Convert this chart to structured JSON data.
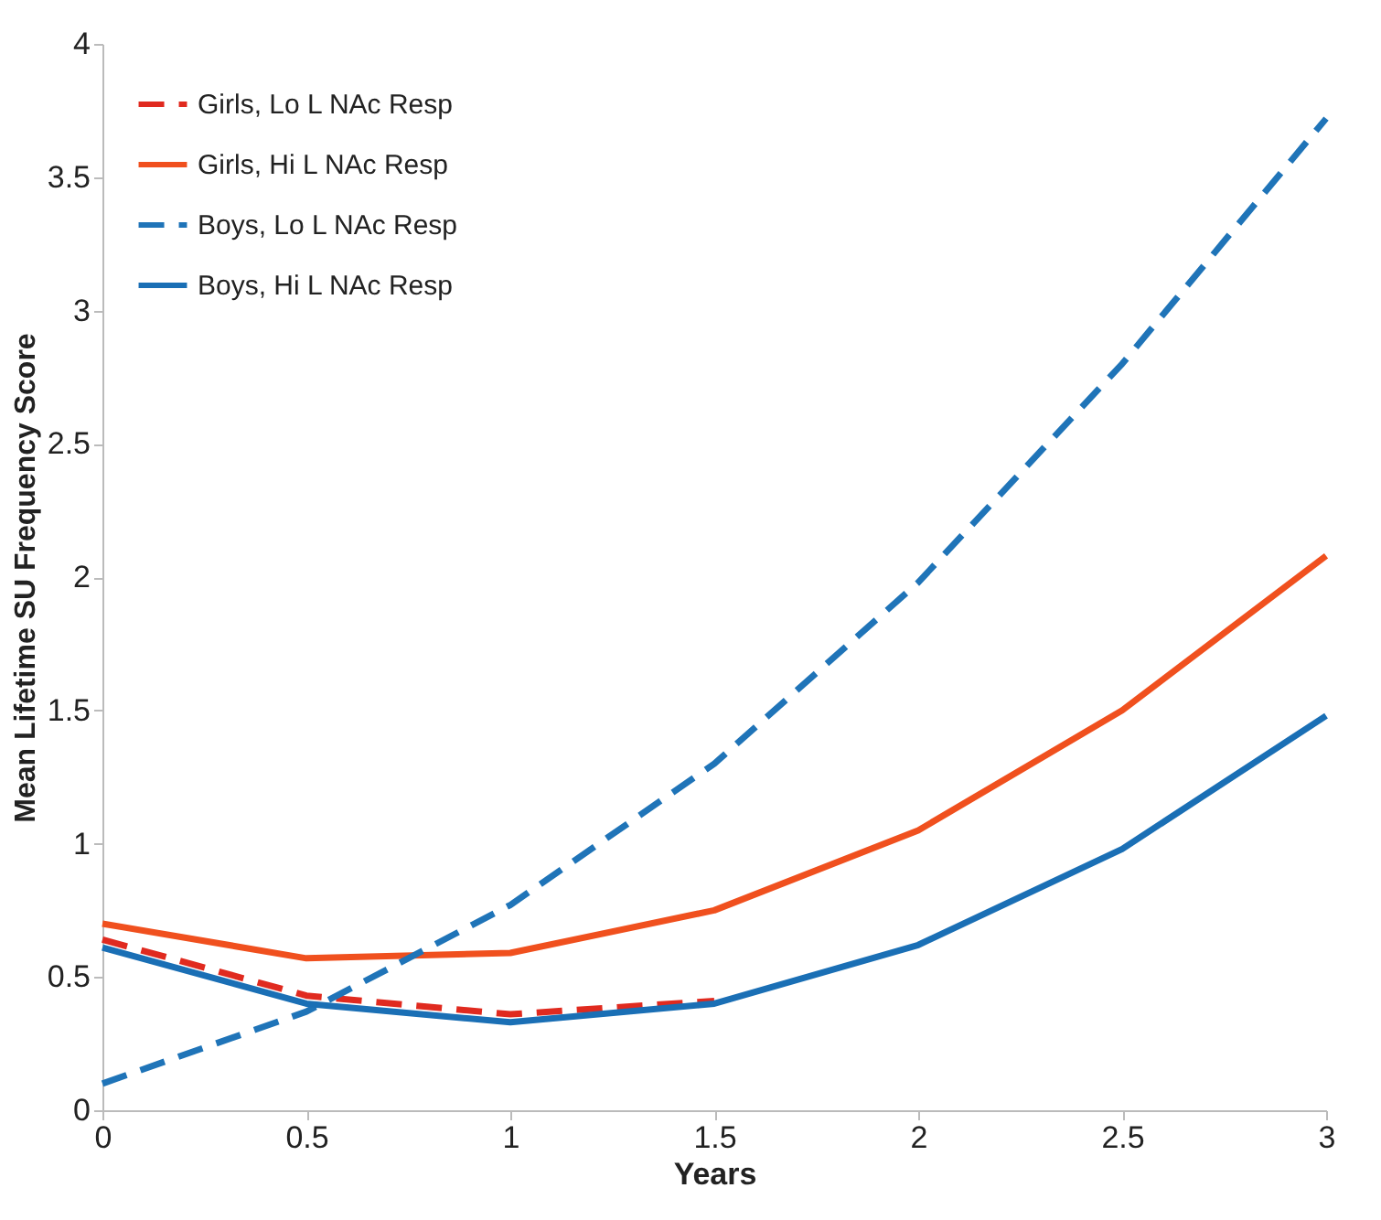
{
  "chart_data": {
    "type": "line",
    "xlabel": "Years",
    "ylabel": "Mean Lifetime SU Frequency Score",
    "x": [
      0,
      0.5,
      1,
      1.5,
      2,
      2.5,
      3
    ],
    "series": [
      {
        "name": "Girls, Lo L NAc Resp",
        "color": "#e02a1f",
        "line_style": "dashed",
        "values": [
          0.64,
          0.43,
          0.36,
          0.41,
          null,
          null,
          null
        ]
      },
      {
        "name": "Girls, Hi L NAc Resp",
        "color": "#f0501e",
        "line_style": "solid",
        "values": [
          0.7,
          0.57,
          0.59,
          0.75,
          1.05,
          1.5,
          2.08
        ]
      },
      {
        "name": "Boys, Lo L NAc Resp",
        "color": "#1f74b8",
        "line_style": "dashed",
        "values": [
          0.1,
          0.37,
          0.77,
          1.3,
          1.98,
          2.8,
          3.72
        ]
      },
      {
        "name": "Boys, Hi L NAc Resp",
        "color": "#1a6fb5",
        "line_style": "solid",
        "values": [
          0.61,
          0.4,
          0.33,
          0.4,
          0.62,
          0.98,
          1.48
        ]
      }
    ],
    "xlim": [
      0,
      3
    ],
    "xticks": [
      0,
      0.5,
      1,
      1.5,
      2,
      2.5,
      3
    ],
    "ylim": [
      0,
      4
    ],
    "yticks": [
      0,
      0.5,
      1,
      1.5,
      2,
      2.5,
      3,
      3.5,
      4
    ],
    "grid": false,
    "legend": "top left",
    "marker": "none"
  }
}
